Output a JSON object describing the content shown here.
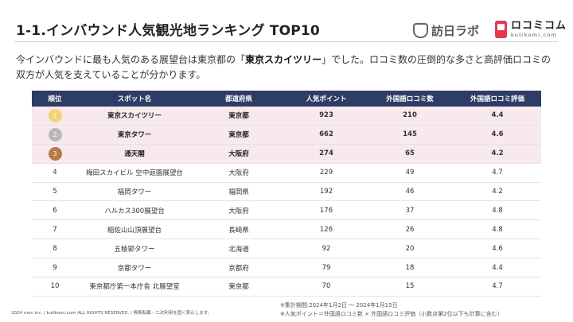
{
  "header": {
    "title": "1-1.インバウンド人気観光地ランキング TOP10",
    "logo_brand": "訪日ラボ",
    "logo2_main": "ロコミコム",
    "logo2_sub": "kutikomi.com"
  },
  "intro": {
    "part1": "今インバウンドに最も人気のある展望台は東京都の「",
    "highlight": "東京スカイツリー",
    "part2": "」でした。ロコミ数の圧倒的な多さと高評価ロコミの双方が人気を支えていることが分かります。"
  },
  "table": {
    "headers": [
      "順位",
      "スポット名",
      "都道府県",
      "人気ポイント",
      "外国語ロコミ数",
      "外国語ロコミ評価"
    ],
    "rows": [
      {
        "rank": "1",
        "spot": "東京スカイツリー",
        "pref": "東京都",
        "points": "923",
        "count": "210",
        "rating": "4.4"
      },
      {
        "rank": "2",
        "spot": "東京タワー",
        "pref": "東京都",
        "points": "662",
        "count": "145",
        "rating": "4.6"
      },
      {
        "rank": "3",
        "spot": "通天閣",
        "pref": "大阪府",
        "points": "274",
        "count": "65",
        "rating": "4.2"
      },
      {
        "rank": "4",
        "spot": "梅田スカイビル 空中庭園展望台",
        "pref": "大阪府",
        "points": "229",
        "count": "49",
        "rating": "4.7"
      },
      {
        "rank": "5",
        "spot": "福岡タワー",
        "pref": "福岡県",
        "points": "192",
        "count": "46",
        "rating": "4.2"
      },
      {
        "rank": "6",
        "spot": "ハルカス300展望台",
        "pref": "大阪府",
        "points": "176",
        "count": "37",
        "rating": "4.8"
      },
      {
        "rank": "7",
        "spot": "稲佐山山頂展望台",
        "pref": "長崎県",
        "points": "126",
        "count": "26",
        "rating": "4.8"
      },
      {
        "rank": "8",
        "spot": "五稜郭タワー",
        "pref": "北海道",
        "points": "92",
        "count": "20",
        "rating": "4.6"
      },
      {
        "rank": "9",
        "spot": "京都タワー",
        "pref": "京都府",
        "points": "79",
        "count": "18",
        "rating": "4.4"
      },
      {
        "rank": "10",
        "spot": "東京都庁第一本庁舎 北展望室",
        "pref": "東京都",
        "points": "70",
        "count": "15",
        "rating": "4.7"
      }
    ]
  },
  "footer": {
    "copyright": "2024 mov inc. / kutikomi.com ALL RIGHTS RESERVED. / 無断転載・二次利用を固く禁止します。",
    "note1": "※集計期間:2024年1月2日 〜 2024年1月15日",
    "note2": "※人気ポイント＝外国語ロコミ数 × 外国語ロコミ評価（小数点第2位以下も計算に含む）"
  },
  "colors": {
    "header_bg": "#2e3d66",
    "top3_bg": "#f7e9ec",
    "gold": "#f5d27a",
    "silver": "#b9b9b9",
    "bronze": "#b57a45",
    "logo_red": "#e8364f"
  }
}
